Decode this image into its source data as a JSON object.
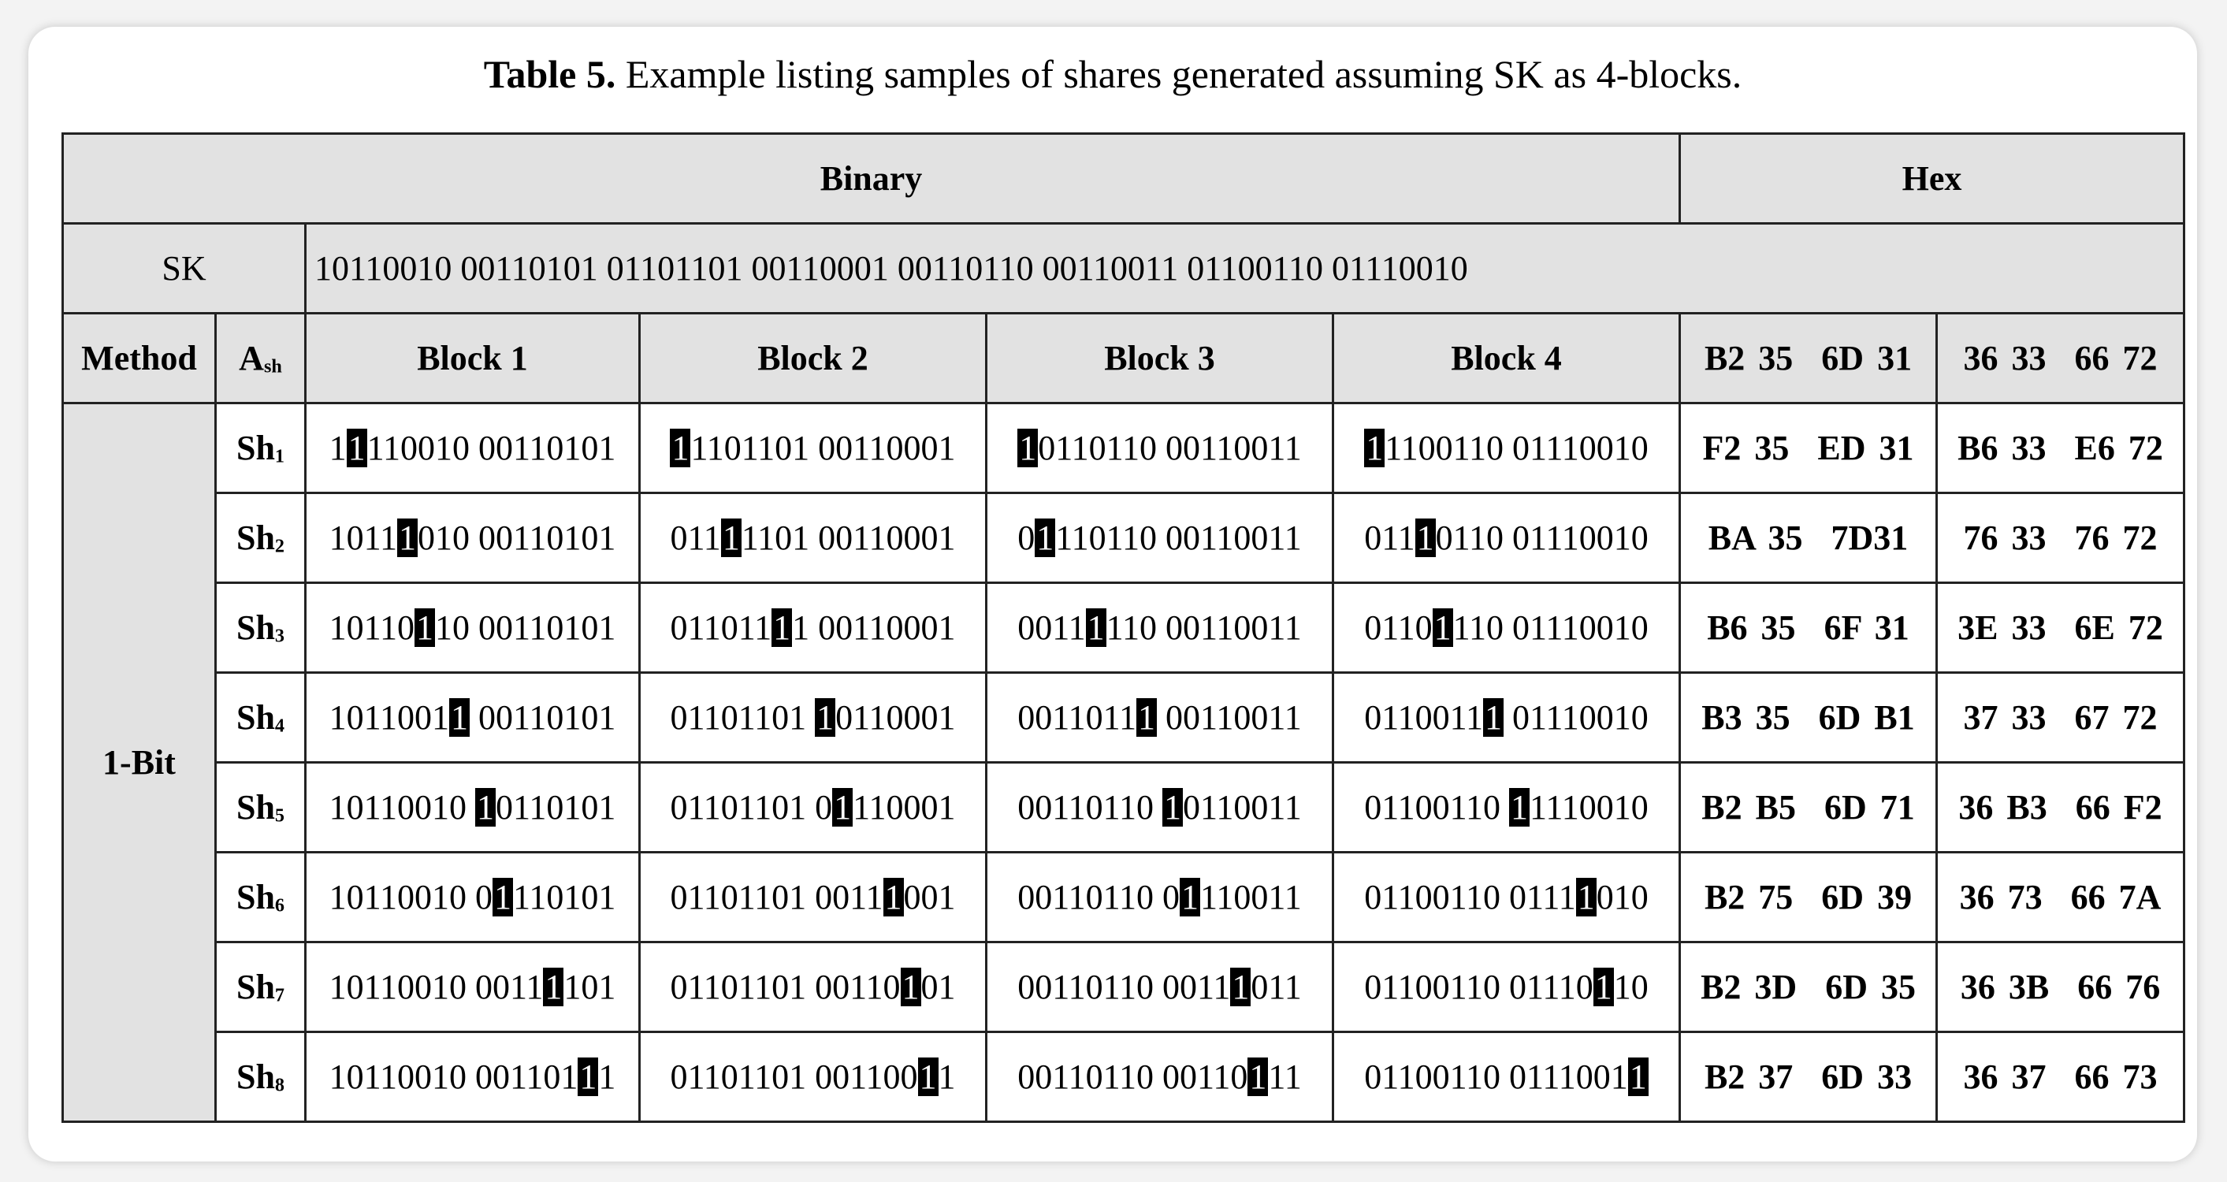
{
  "caption": {
    "label": "Table 5.",
    "text": "Example listing samples of shares generated assuming SK as 4-blocks."
  },
  "header": {
    "binary": "Binary",
    "hex": "Hex"
  },
  "sk": {
    "label": "SK",
    "value": "10110010 00110101 01101101 00110001 00110110 00110011 01100110 01110010"
  },
  "columns": {
    "method": "Method",
    "ash": "A",
    "ash_sub": "sh",
    "block1": "Block 1",
    "block2": "Block 2",
    "block3": "Block 3",
    "block4": "Block 4",
    "hex1a": "B2 35",
    "hex1b": "6D 31",
    "hex2a": "36 33",
    "hex2b": "66 72"
  },
  "method_name": "1-Bit",
  "rows": [
    {
      "sh": "Sh",
      "n": "1",
      "b1": [
        "1",
        "1",
        "110010 00110101"
      ],
      "b2": [
        "",
        "1",
        "1101101 00110001"
      ],
      "b3": [
        "",
        "1",
        "0110110 00110011"
      ],
      "b4": [
        "",
        "1",
        "1100110 01110010"
      ],
      "h1a": "F2 35",
      "h1b": "ED 31",
      "h2a": "B6 33",
      "h2b": "E6 72"
    },
    {
      "sh": "Sh",
      "n": "2",
      "b1": [
        "1011",
        "1",
        "010 00110101"
      ],
      "b2": [
        "011",
        "1",
        "1101 00110001"
      ],
      "b3": [
        "0",
        "1",
        "110110 00110011"
      ],
      "b4": [
        "011",
        "1",
        "0110 01110010"
      ],
      "h1a": "BA 35",
      "h1b": "7D31",
      "h2a": "76 33",
      "h2b": "76 72"
    },
    {
      "sh": "Sh",
      "n": "3",
      "b1": [
        "10110",
        "1",
        "10 00110101"
      ],
      "b2": [
        "011011",
        "1",
        "1 00110001"
      ],
      "b3": [
        "0011",
        "1",
        "110 00110011"
      ],
      "b4": [
        "0110",
        "1",
        "110 01110010"
      ],
      "h1a": "B6 35",
      "h1b": "6F 31",
      "h2a": "3E 33",
      "h2b": "6E 72"
    },
    {
      "sh": "Sh",
      "n": "4",
      "b1": [
        "1011001",
        "1",
        " 00110101"
      ],
      "b2": [
        "01101101 ",
        "1",
        "0110001"
      ],
      "b3": [
        "0011011",
        "1",
        " 00110011"
      ],
      "b4": [
        "0110011",
        "1",
        " 01110010"
      ],
      "h1a": "B3 35",
      "h1b": "6D B1",
      "h2a": "37 33",
      "h2b": "67 72"
    },
    {
      "sh": "Sh",
      "n": "5",
      "b1": [
        "10110010 ",
        "1",
        "0110101"
      ],
      "b2": [
        "01101101 0",
        "1",
        "110001"
      ],
      "b3": [
        "00110110 ",
        "1",
        "0110011"
      ],
      "b4": [
        "01100110 ",
        "1",
        "1110010"
      ],
      "h1a": "B2 B5",
      "h1b": "6D 71",
      "h2a": "36 B3",
      "h2b": "66 F2"
    },
    {
      "sh": "Sh",
      "n": "6",
      "b1": [
        "10110010 0",
        "1",
        "110101"
      ],
      "b2": [
        "01101101 0011",
        "1",
        "001"
      ],
      "b3": [
        "00110110 0",
        "1",
        "110011"
      ],
      "b4": [
        "01100110 0111",
        "1",
        "010"
      ],
      "h1a": "B2 75",
      "h1b": "6D 39",
      "h2a": "36 73",
      "h2b": "66 7A"
    },
    {
      "sh": "Sh",
      "n": "7",
      "b1": [
        "10110010 0011",
        "1",
        "101"
      ],
      "b2": [
        "01101101 00110",
        "1",
        "01"
      ],
      "b3": [
        "00110110 0011",
        "1",
        "011"
      ],
      "b4": [
        "01100110 01110",
        "1",
        "10"
      ],
      "h1a": "B2 3D",
      "h1b": "6D 35",
      "h2a": "36 3B",
      "h2b": "66 76"
    },
    {
      "sh": "Sh",
      "n": "8",
      "b1": [
        "10110010 001101",
        "1",
        "1"
      ],
      "b2": [
        "01101101 001100",
        "1",
        "1"
      ],
      "b3": [
        "00110110 00110",
        "1",
        "11"
      ],
      "b4": [
        "01100110 0111001",
        "1",
        ""
      ],
      "h1a": "B2 37",
      "h1b": "6D 33",
      "h2a": "36 37",
      "h2b": "66 73"
    }
  ]
}
